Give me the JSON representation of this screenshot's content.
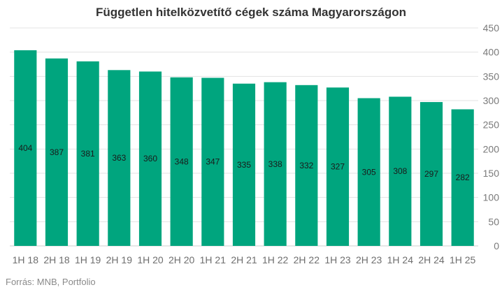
{
  "chart_data": {
    "type": "bar",
    "title": "Független hitelközvetítő cégek száma Magyarországon",
    "xlabel": "",
    "ylabel": "",
    "categories": [
      "1H 18",
      "2H 18",
      "1H 19",
      "2H 19",
      "1H 20",
      "2H 20",
      "1H 21",
      "2H 21",
      "1H 22",
      "2H 22",
      "1H 23",
      "2H 23",
      "1H 24",
      "2H 24",
      "1H 25"
    ],
    "values": [
      404,
      387,
      381,
      363,
      360,
      348,
      347,
      335,
      338,
      332,
      327,
      305,
      308,
      297,
      282
    ],
    "ylim": [
      0,
      450
    ],
    "yticks": [
      0,
      50,
      100,
      150,
      200,
      250,
      300,
      350,
      400,
      450
    ],
    "y_axis_side": "right",
    "grid": true,
    "bar_color": "#00a57e",
    "grid_color": "#e3e3e3",
    "source": "Forrás: MNB, Portfolio"
  }
}
